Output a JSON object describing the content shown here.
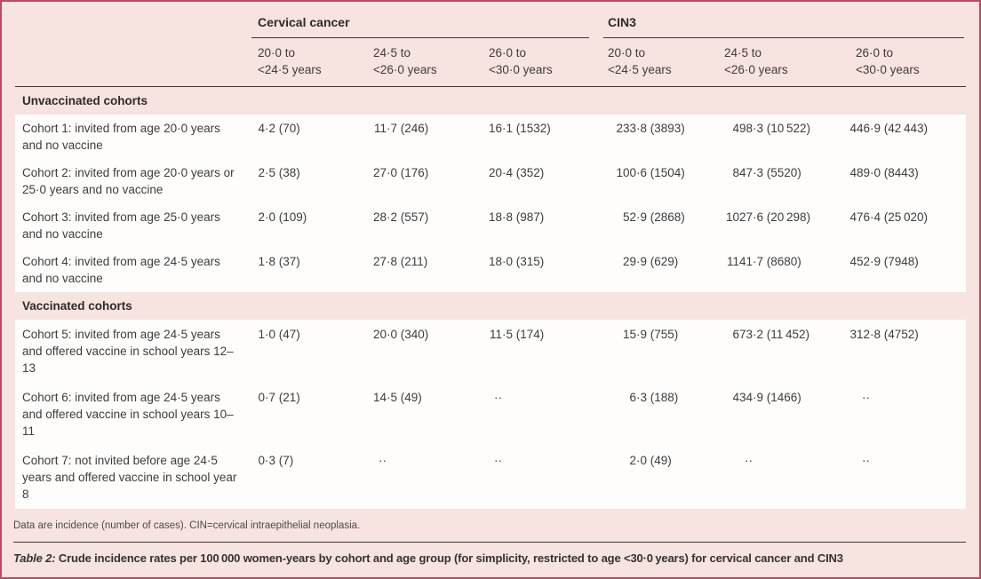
{
  "colors": {
    "border": "#b94b64",
    "bg": "#f7e3df",
    "row": "#fefdfc",
    "rule": "#3a3a3a",
    "text": "#3d3d3d",
    "head": "#2c2c2c"
  },
  "table": {
    "groups": [
      {
        "label": "Cervical cancer",
        "columns": [
          {
            "top": "20·0 to",
            "bottom": "<24·5 years"
          },
          {
            "top": "24·5 to",
            "bottom": "<26·0 years"
          },
          {
            "top": "26·0 to",
            "bottom": "<30·0 years"
          }
        ]
      },
      {
        "label": "CIN3",
        "columns": [
          {
            "top": "20·0 to",
            "bottom": "<24·5 years"
          },
          {
            "top": "24·5 to",
            "bottom": "<26·0 years"
          },
          {
            "top": "26·0 to",
            "bottom": "<30·0 years"
          }
        ]
      }
    ],
    "missing_marker": "··",
    "sections": [
      {
        "label": "Unvaccinated cohorts",
        "rows": [
          {
            "label": "Cohort 1: invited from age 20·0 years and no vaccine",
            "cells": [
              "4·2 (70)",
              "11·7 (246)",
              "16·1 (1532)",
              "233·8 (3893)",
              "498·3 (10 522)",
              "446·9 (42 443)"
            ]
          },
          {
            "label": "Cohort 2: invited from age 20·0 years or 25·0 years and no vaccine",
            "cells": [
              "2·5 (38)",
              "27·0 (176)",
              "20·4 (352)",
              "100·6 (1504)",
              "847·3 (5520)",
              "489·0 (8443)"
            ]
          },
          {
            "label": "Cohort 3: invited from age 25·0 years and no vaccine",
            "cells": [
              "2·0 (109)",
              "28·2 (557)",
              "18·8 (987)",
              "52·9 (2868)",
              "1027·6 (20 298)",
              "476·4 (25 020)"
            ]
          },
          {
            "label": "Cohort 4: invited from age 24·5 years and no vaccine",
            "cells": [
              "1·8 (37)",
              "27·8 (211)",
              "18·0 (315)",
              "29·9 (629)",
              "1141·7 (8680)",
              "452·9 (7948)"
            ]
          }
        ]
      },
      {
        "label": "Vaccinated cohorts",
        "rows": [
          {
            "label": "Cohort 5: invited from age 24·5 years and offered vaccine in school years 12–13",
            "cells": [
              "1·0 (47)",
              "20·0 (340)",
              "11·5 (174)",
              "15·9 (755)",
              "673·2 (11 452)",
              "312·8 (4752)"
            ]
          },
          {
            "label": "Cohort 6: invited from age 24·5 years and offered vaccine in school years 10–11",
            "cells": [
              "0·7 (21)",
              "14·5 (49)",
              "··",
              "6·3 (188)",
              "434·9 (1466)",
              "··"
            ]
          },
          {
            "label": "Cohort 7: not invited before age 24·5 years and offered vaccine in school year 8",
            "cells": [
              "0·3 (7)",
              "··",
              "··",
              "2·0 (49)",
              "··",
              "··"
            ]
          }
        ]
      }
    ]
  },
  "footnote": "Data are incidence (number of cases). CIN=cervical intraepithelial neoplasia.",
  "caption": {
    "label": "Table 2:",
    "text": " Crude incidence rates per 100 000 women-years by cohort and age group (for simplicity, restricted to age <30·0 years) for cervical cancer and CIN3"
  }
}
